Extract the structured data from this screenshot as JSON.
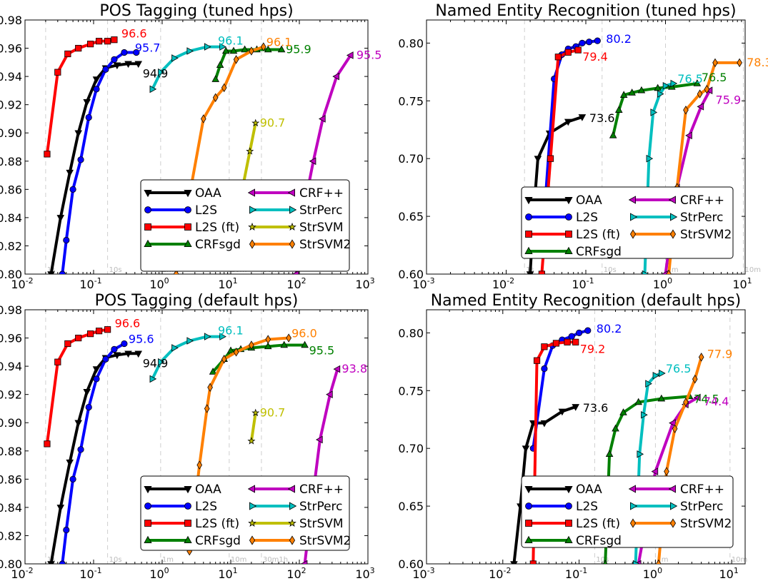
{
  "chart_data": [
    {
      "type": "line",
      "title": "POS Tagging (tuned hps)",
      "xscale": "log",
      "xlim": [
        0.01,
        1000
      ],
      "ylim": [
        0.8,
        0.98
      ],
      "xticks": [
        "10",
        "10",
        "10",
        "10",
        "10",
        "10"
      ],
      "xtick_exp": [
        "-2",
        "-1",
        "0",
        "1",
        "2",
        "3"
      ],
      "yticks": [
        "0.80",
        "0.82",
        "0.84",
        "0.86",
        "0.88",
        "0.90",
        "0.92",
        "0.94",
        "0.96",
        "0.98"
      ],
      "time_marks": [
        {
          "label": "1s",
          "x": 0.02
        },
        {
          "label": "10s",
          "x": 0.16
        },
        {
          "label": "1m",
          "x": 0.95
        },
        {
          "label": "10m",
          "x": 9.5
        },
        {
          "label": "30m1h",
          "x": 28
        }
      ],
      "legend_position": "lower-right",
      "series": [
        {
          "name": "OAA",
          "color": "#000000",
          "marker": "tri-down",
          "end_label": "94.9",
          "x": [
            0.024,
            0.033,
            0.045,
            0.06,
            0.08,
            0.11,
            0.15,
            0.22,
            0.32,
            0.45
          ],
          "y": [
            0.8,
            0.84,
            0.872,
            0.9,
            0.922,
            0.938,
            0.946,
            0.948,
            0.949,
            0.949
          ]
        },
        {
          "name": "L2S",
          "color": "#0000ff",
          "marker": "circle",
          "end_label": "95.7",
          "x": [
            0.035,
            0.04,
            0.05,
            0.065,
            0.085,
            0.11,
            0.15,
            0.2,
            0.28,
            0.42
          ],
          "y": [
            0.8,
            0.824,
            0.86,
            0.881,
            0.911,
            0.931,
            0.945,
            0.952,
            0.957,
            0.957
          ]
        },
        {
          "name": "L2S (ft)",
          "color": "#ff0000",
          "marker": "square",
          "end_label": "96.6",
          "x": [
            0.021,
            0.03,
            0.042,
            0.06,
            0.09,
            0.12,
            0.16,
            0.2
          ],
          "y": [
            0.885,
            0.943,
            0.956,
            0.96,
            0.963,
            0.965,
            0.965,
            0.966
          ]
        },
        {
          "name": "CRFsgd",
          "color": "#008000",
          "marker": "tri-up",
          "end_label": "95.9",
          "x": [
            6.0,
            7.0,
            8.5,
            11,
            16,
            24,
            35,
            55
          ],
          "y": [
            0.938,
            0.948,
            0.958,
            0.958,
            0.959,
            0.959,
            0.959,
            0.959
          ]
        },
        {
          "name": "CRF++",
          "color": "#bf00bf",
          "marker": "tri-left",
          "end_label": "95.5",
          "x": [
            90,
            110,
            160,
            220,
            350,
            560
          ],
          "y": [
            0.8,
            0.84,
            0.88,
            0.91,
            0.94,
            0.955
          ]
        },
        {
          "name": "StrPerc",
          "color": "#00bfbf",
          "marker": "tri-right",
          "end_label": "96.1",
          "x": [
            0.72,
            0.95,
            1.5,
            2.5,
            4.5,
            7.5
          ],
          "y": [
            0.931,
            0.943,
            0.953,
            0.958,
            0.961,
            0.961
          ]
        },
        {
          "name": "StrSVM",
          "color": "#bfbf00",
          "marker": "star",
          "end_label": "90.7",
          "x": [
            15,
            19,
            23
          ],
          "y": [
            0.862,
            0.887,
            0.907
          ]
        },
        {
          "name": "StrSVM2",
          "color": "#ff8000",
          "marker": "diamond",
          "end_label": "96.1",
          "x": [
            1.6,
            2.6,
            4.0,
            6.0,
            8.0,
            12,
            20,
            30
          ],
          "y": [
            0.8,
            0.86,
            0.91,
            0.925,
            0.932,
            0.952,
            0.958,
            0.961
          ]
        }
      ]
    },
    {
      "type": "line",
      "title": "Named Entity Recognition (tuned hps)",
      "xscale": "log",
      "xlim": [
        0.001,
        10
      ],
      "ylim": [
        0.6,
        0.82
      ],
      "xticks": [
        "10",
        "10",
        "10",
        "10",
        "10"
      ],
      "xtick_exp": [
        "-3",
        "-2",
        "-1",
        "0",
        "1"
      ],
      "yticks": [
        "0.60",
        "0.65",
        "0.70",
        "0.75",
        "0.80"
      ],
      "time_marks": [
        {
          "label": "1s",
          "x": 0.017
        },
        {
          "label": "10s",
          "x": 0.16
        },
        {
          "label": "1m",
          "x": 1.0
        },
        {
          "label": "10m",
          "x": 9.5
        }
      ],
      "legend_position": "lower-right",
      "series": [
        {
          "name": "OAA",
          "color": "#000000",
          "marker": "tri-down",
          "end_label": "73.6",
          "x": [
            0.02,
            0.022,
            0.025,
            0.035,
            0.06,
            0.09
          ],
          "y": [
            0.6,
            0.65,
            0.7,
            0.722,
            0.732,
            0.736
          ]
        },
        {
          "name": "L2S",
          "color": "#0000ff",
          "marker": "circle",
          "end_label": "80.2",
          "x": [
            0.03,
            0.04,
            0.05,
            0.06,
            0.075,
            0.09,
            0.11,
            0.14
          ],
          "y": [
            0.65,
            0.769,
            0.79,
            0.795,
            0.797,
            0.8,
            0.801,
            0.802
          ]
        },
        {
          "name": "L2S (ft)",
          "color": "#ff0000",
          "marker": "square",
          "end_label": "79.4",
          "x": [
            0.028,
            0.036,
            0.045,
            0.06,
            0.08
          ],
          "y": [
            0.6,
            0.7,
            0.788,
            0.792,
            0.794
          ]
        },
        {
          "name": "CRFsgd",
          "color": "#008000",
          "marker": "tri-up",
          "end_label": "76.5",
          "x": [
            0.22,
            0.26,
            0.3,
            0.38,
            0.5,
            0.8,
            1.2,
            2.5
          ],
          "y": [
            0.72,
            0.742,
            0.755,
            0.757,
            0.759,
            0.761,
            0.762,
            0.765
          ]
        },
        {
          "name": "CRF++",
          "color": "#bf00bf",
          "marker": "tri-left",
          "end_label": "75.9",
          "x": [
            1.0,
            1.4,
            2.0,
            2.8,
            3.6
          ],
          "y": [
            0.6,
            0.675,
            0.72,
            0.745,
            0.759
          ]
        },
        {
          "name": "StrPerc",
          "color": "#00bfbf",
          "marker": "tri-right",
          "end_label": "76.5",
          "x": [
            0.55,
            0.62,
            0.7,
            0.85,
            1.0,
            1.25
          ],
          "y": [
            0.6,
            0.7,
            0.74,
            0.756,
            0.763,
            0.765
          ]
        },
        {
          "name": "StrSVM2",
          "color": "#ff8000",
          "marker": "diamond",
          "end_label": "78.3",
          "x": [
            1.1,
            1.4,
            1.8,
            2.7,
            3.3,
            4.2,
            8.5
          ],
          "y": [
            0.6,
            0.675,
            0.742,
            0.756,
            0.76,
            0.783,
            0.783
          ]
        }
      ]
    },
    {
      "type": "line",
      "title": "POS Tagging (default hps)",
      "xscale": "log",
      "xlim": [
        0.01,
        1000
      ],
      "ylim": [
        0.8,
        0.98
      ],
      "xticks": [
        "10",
        "10",
        "10",
        "10",
        "10",
        "10"
      ],
      "xtick_exp": [
        "-2",
        "-1",
        "0",
        "1",
        "2",
        "3"
      ],
      "yticks": [
        "0.80",
        "0.82",
        "0.84",
        "0.86",
        "0.88",
        "0.90",
        "0.92",
        "0.94",
        "0.96",
        "0.98"
      ],
      "time_marks": [
        {
          "label": "1s",
          "x": 0.02
        },
        {
          "label": "10s",
          "x": 0.16
        },
        {
          "label": "1m",
          "x": 0.95
        },
        {
          "label": "10m",
          "x": 9.5
        },
        {
          "label": "30m1h",
          "x": 28
        }
      ],
      "legend_position": "lower-right",
      "series": [
        {
          "name": "OAA",
          "color": "#000000",
          "marker": "tri-down",
          "end_label": "94.9",
          "x": [
            0.024,
            0.033,
            0.045,
            0.06,
            0.08,
            0.11,
            0.15,
            0.22,
            0.32,
            0.45
          ],
          "y": [
            0.8,
            0.84,
            0.872,
            0.9,
            0.922,
            0.938,
            0.946,
            0.948,
            0.949,
            0.949
          ]
        },
        {
          "name": "L2S",
          "color": "#0000ff",
          "marker": "circle",
          "end_label": "95.6",
          "x": [
            0.035,
            0.04,
            0.05,
            0.065,
            0.085,
            0.11,
            0.15,
            0.2,
            0.28
          ],
          "y": [
            0.8,
            0.824,
            0.86,
            0.881,
            0.911,
            0.931,
            0.945,
            0.952,
            0.956
          ]
        },
        {
          "name": "L2S (ft)",
          "color": "#ff0000",
          "marker": "square",
          "end_label": "96.6",
          "x": [
            0.021,
            0.03,
            0.042,
            0.06,
            0.09,
            0.12,
            0.16
          ],
          "y": [
            0.885,
            0.943,
            0.956,
            0.96,
            0.963,
            0.965,
            0.966
          ]
        },
        {
          "name": "CRFsgd",
          "color": "#008000",
          "marker": "tri-up",
          "end_label": "95.5",
          "x": [
            5.5,
            8.0,
            10,
            14,
            20,
            35,
            60,
            120
          ],
          "y": [
            0.936,
            0.945,
            0.951,
            0.952,
            0.953,
            0.954,
            0.955,
            0.955
          ]
        },
        {
          "name": "CRF++",
          "color": "#bf00bf",
          "marker": "tri-left",
          "end_label": "93.8",
          "x": [
            120,
            150,
            200,
            280,
            360
          ],
          "y": [
            0.8,
            0.84,
            0.888,
            0.92,
            0.938
          ]
        },
        {
          "name": "StrPerc",
          "color": "#00bfbf",
          "marker": "tri-right",
          "end_label": "96.1",
          "x": [
            0.72,
            0.95,
            1.5,
            2.5,
            4.5,
            7.5
          ],
          "y": [
            0.931,
            0.943,
            0.953,
            0.958,
            0.961,
            0.961
          ]
        },
        {
          "name": "StrSVM",
          "color": "#bfbf00",
          "marker": "star",
          "end_label": "90.7",
          "x": [
            20,
            23
          ],
          "y": [
            0.887,
            0.907
          ]
        },
        {
          "name": "StrSVM2",
          "color": "#ff8000",
          "marker": "diamond",
          "end_label": "96.0",
          "x": [
            2.5,
            3.5,
            4.5,
            5.0,
            8.0,
            12,
            20,
            35,
            70
          ],
          "y": [
            0.809,
            0.87,
            0.91,
            0.925,
            0.945,
            0.95,
            0.955,
            0.959,
            0.96
          ]
        }
      ]
    },
    {
      "type": "line",
      "title": "Named Entity Recognition (default hps)",
      "xscale": "log",
      "xlim": [
        0.001,
        15
      ],
      "ylim": [
        0.6,
        0.82
      ],
      "xticks": [
        "10",
        "10",
        "10",
        "10",
        "10"
      ],
      "xtick_exp": [
        "-3",
        "-2",
        "-1",
        "0",
        "1"
      ],
      "yticks": [
        "0.60",
        "0.65",
        "0.70",
        "0.75",
        "0.80"
      ],
      "time_marks": [
        {
          "label": "10s",
          "x": 0.16
        },
        {
          "label": "1m",
          "x": 1.0
        },
        {
          "label": "10m",
          "x": 9.5
        }
      ],
      "legend_position": "lower-right",
      "series": [
        {
          "name": "OAA",
          "color": "#000000",
          "marker": "tri-down",
          "end_label": "73.6",
          "x": [
            0.014,
            0.017,
            0.02,
            0.025,
            0.035,
            0.06,
            0.09
          ],
          "y": [
            0.6,
            0.65,
            0.7,
            0.722,
            0.722,
            0.732,
            0.736
          ]
        },
        {
          "name": "L2S",
          "color": "#0000ff",
          "marker": "circle",
          "end_label": "80.2",
          "x": [
            0.025,
            0.035,
            0.045,
            0.06,
            0.08,
            0.1,
            0.13
          ],
          "y": [
            0.7,
            0.769,
            0.789,
            0.794,
            0.797,
            0.8,
            0.802
          ]
        },
        {
          "name": "L2S (ft)",
          "color": "#ff0000",
          "marker": "square",
          "end_label": "79.2",
          "x": [
            0.025,
            0.028,
            0.035,
            0.05,
            0.07,
            0.09
          ],
          "y": [
            0.6,
            0.776,
            0.788,
            0.791,
            0.792,
            0.792
          ]
        },
        {
          "name": "CRFsgd",
          "color": "#008000",
          "marker": "tri-up",
          "end_label": "74.5",
          "x": [
            0.22,
            0.25,
            0.3,
            0.38,
            0.6,
            1.2,
            2.8
          ],
          "y": [
            0.6,
            0.695,
            0.717,
            0.731,
            0.74,
            0.743,
            0.745
          ]
        },
        {
          "name": "CRF++",
          "color": "#bf00bf",
          "marker": "tri-left",
          "end_label": "74.4",
          "x": [
            0.6,
            1.0,
            1.7,
            2.5,
            3.6
          ],
          "y": [
            0.6,
            0.68,
            0.722,
            0.738,
            0.744
          ]
        },
        {
          "name": "StrPerc",
          "color": "#00bfbf",
          "marker": "tri-right",
          "end_label": "76.5",
          "x": [
            0.55,
            0.62,
            0.7,
            0.8,
            1.0,
            1.2
          ],
          "y": [
            0.6,
            0.695,
            0.729,
            0.756,
            0.763,
            0.765
          ]
        },
        {
          "name": "StrSVM2",
          "color": "#ff8000",
          "marker": "diamond",
          "end_label": "77.9",
          "x": [
            1.1,
            1.4,
            1.8,
            2.5,
            3.3,
            4.0
          ],
          "y": [
            0.6,
            0.68,
            0.717,
            0.74,
            0.76,
            0.779
          ]
        }
      ]
    }
  ],
  "legend_columns": [
    [
      "OAA",
      "L2S",
      "L2S (ft)",
      "CRFsgd"
    ],
    [
      "CRF++",
      "StrPerc",
      "StrSVM",
      "StrSVM2"
    ]
  ]
}
